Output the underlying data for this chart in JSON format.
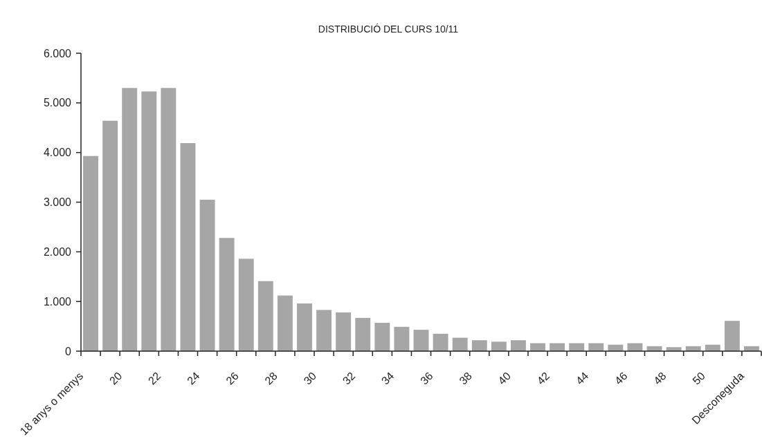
{
  "chart_data": {
    "type": "bar",
    "title": "DISTRIBUCIÓ DEL CURS 10/11",
    "categories": [
      "18 anys o menys",
      null,
      "20",
      null,
      "22",
      null,
      "24",
      null,
      "26",
      null,
      "28",
      null,
      "30",
      null,
      "32",
      null,
      "34",
      null,
      "36",
      null,
      "38",
      null,
      "40",
      null,
      "42",
      null,
      "44",
      null,
      "46",
      null,
      "48",
      null,
      "50",
      null,
      "Desconeguda"
    ],
    "values": [
      3930,
      4640,
      5300,
      5230,
      5300,
      4190,
      3050,
      2280,
      1860,
      1410,
      1120,
      960,
      830,
      780,
      670,
      570,
      490,
      430,
      350,
      270,
      220,
      190,
      220,
      160,
      160,
      160,
      160,
      130,
      160,
      100,
      80,
      100,
      130,
      610,
      100
    ],
    "color": "#a6a6a6",
    "ylim": [
      0,
      6000
    ],
    "yticks": [
      {
        "value": 0,
        "label": "0"
      },
      {
        "value": 1000,
        "label": "1.000"
      },
      {
        "value": 2000,
        "label": "2.000"
      },
      {
        "value": 3000,
        "label": "3.000"
      },
      {
        "value": 4000,
        "label": "4.000"
      },
      {
        "value": 5000,
        "label": "5.000"
      },
      {
        "value": 6000,
        "label": "6.000"
      }
    ]
  }
}
